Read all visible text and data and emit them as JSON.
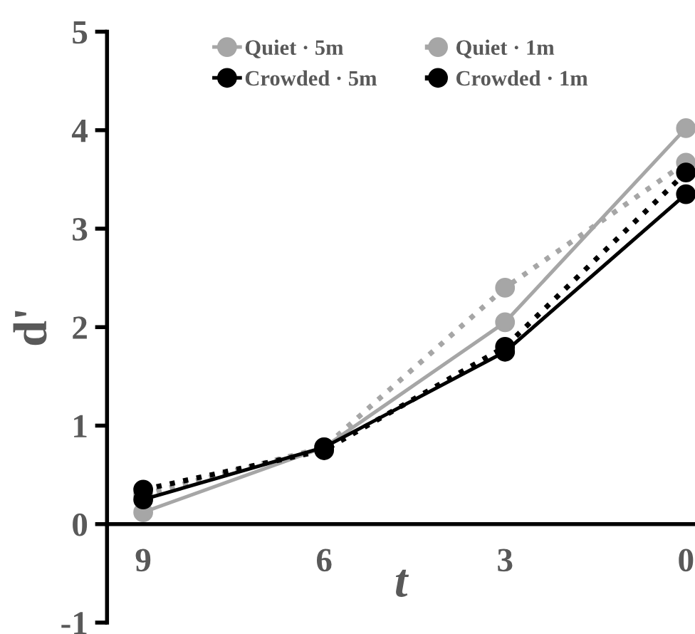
{
  "chart_data": {
    "type": "line",
    "xlabel": "t",
    "ylabel": "d'",
    "categories": [
      "9",
      "6",
      "3",
      "0"
    ],
    "series": [
      {
        "name": "Quiet · 5m",
        "color": "#a6a6a6",
        "line_style": "solid",
        "values": [
          0.12,
          0.78,
          2.05,
          4.02
        ]
      },
      {
        "name": "Quiet · 1m",
        "color": "#a6a6a6",
        "line_style": "dotted",
        "values": [
          0.3,
          0.78,
          2.4,
          3.67
        ]
      },
      {
        "name": "Crowded · 5m",
        "color": "#000000",
        "line_style": "solid",
        "values": [
          0.25,
          0.78,
          1.75,
          3.35
        ]
      },
      {
        "name": "Crowded · 1m",
        "color": "#000000",
        "line_style": "dotted",
        "values": [
          0.35,
          0.75,
          1.8,
          3.57
        ]
      }
    ],
    "ylim": [
      -1,
      5
    ],
    "yticks": [
      -1,
      0,
      1,
      2,
      3,
      4,
      5
    ],
    "grid": false,
    "legend": "top",
    "marker": "circle"
  }
}
